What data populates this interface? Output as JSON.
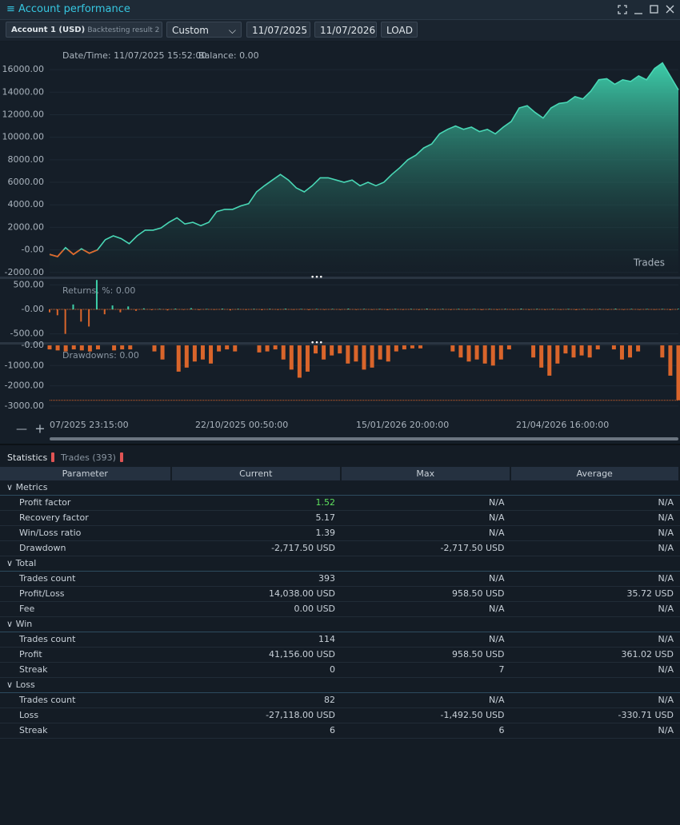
{
  "window": {
    "title": "Account performance"
  },
  "toolbar": {
    "account": "Account 1 (USD)",
    "source": "Backtesting result 2",
    "period": "Custom",
    "from": "11/07/2025",
    "to": "11/07/2026",
    "load": "LOAD"
  },
  "chart_data": [
    {
      "type": "area",
      "name": "equity",
      "header": "Date/Time: 11/07/2025 15:52:00",
      "balance": "Balance: 0.00",
      "label": "Trades",
      "color": "#49d7b5",
      "negative_color": "#e0662a",
      "values": [
        -400,
        -600,
        200,
        -400,
        100,
        -300,
        0,
        900,
        1250,
        1000,
        550,
        1250,
        1750,
        1750,
        1950,
        2450,
        2850,
        2300,
        2450,
        2150,
        2450,
        3400,
        3600,
        3600,
        3900,
        4100,
        5150,
        5700,
        6200,
        6700,
        6200,
        5500,
        5150,
        5700,
        6400,
        6400,
        6200,
        6000,
        6200,
        5700,
        6000,
        5700,
        6000,
        6700,
        7300,
        8000,
        8400,
        9050,
        9400,
        10300,
        10700,
        11000,
        10700,
        10900,
        10500,
        10700,
        10300,
        10900,
        11400,
        12600,
        12800,
        12200,
        11700,
        12600,
        13000,
        13100,
        13600,
        13400,
        14100,
        15100,
        15200,
        14700,
        15100,
        14950,
        15450,
        15100,
        16100,
        16600,
        15400,
        14200
      ],
      "ylim": [
        -2300,
        18350
      ],
      "yticks": [
        {
          "value": 16000,
          "label": "16000.00"
        },
        {
          "value": 14000,
          "label": "14000.00"
        },
        {
          "value": 12000,
          "label": "12000.00"
        },
        {
          "value": 10000,
          "label": "10000.00"
        },
        {
          "value": 8000,
          "label": "8000.00"
        },
        {
          "value": 6000,
          "label": "6000.00"
        },
        {
          "value": 4000,
          "label": "4000.00"
        },
        {
          "value": 2000,
          "label": "2000.00"
        },
        {
          "value": 0,
          "label": "-0.00"
        },
        {
          "value": -2000,
          "label": "-2000.00"
        }
      ]
    },
    {
      "type": "bar",
      "name": "returns",
      "header": "Returns, %: 0.00",
      "positive_color": "#3ecfa8",
      "negative_color": "#d9652b",
      "values": [
        -60,
        -120,
        -500,
        100,
        -250,
        -350,
        600,
        -100,
        80,
        -60,
        60,
        -30,
        20,
        -15,
        10,
        -20,
        15,
        -10,
        25,
        -15,
        10,
        -10,
        15,
        -20,
        10,
        -10,
        10,
        -15,
        10,
        -10,
        15,
        -10,
        10,
        -15,
        10,
        -10,
        10,
        -10,
        15,
        -10,
        10,
        -10,
        10,
        -15,
        10,
        -10,
        10,
        -10,
        15,
        -10,
        10,
        -10,
        10,
        -10,
        10,
        -15,
        10,
        -10,
        10,
        -10,
        15,
        -10,
        10,
        -10,
        10,
        -10,
        10,
        -15,
        10,
        -10,
        10,
        -10,
        15,
        -10,
        10,
        -10,
        10,
        -10,
        10,
        -15,
        10
      ],
      "ylim": [
        -620,
        620
      ],
      "yticks": [
        {
          "value": 500,
          "label": "500.00"
        },
        {
          "value": 0,
          "label": "-0.00"
        },
        {
          "value": -500,
          "label": "-500.00"
        }
      ]
    },
    {
      "type": "bar",
      "name": "drawdowns",
      "header": "Drawdowns: 0.00",
      "color": "#d9652b",
      "threshold": -2717.5,
      "values": [
        -200,
        -250,
        -300,
        -200,
        -250,
        -300,
        -200,
        0,
        -250,
        -200,
        -200,
        0,
        0,
        -300,
        -700,
        0,
        -1300,
        -1100,
        -800,
        -700,
        -900,
        -300,
        -200,
        -300,
        0,
        0,
        -350,
        -300,
        -200,
        -700,
        -1200,
        -1600,
        -1300,
        -400,
        -700,
        -500,
        -400,
        -900,
        -800,
        -1200,
        -1100,
        -700,
        -800,
        -300,
        -200,
        -150,
        -150,
        0,
        0,
        0,
        -300,
        -600,
        -800,
        -700,
        -900,
        -1000,
        -700,
        -200,
        0,
        0,
        -600,
        -1100,
        -1500,
        -900,
        -400,
        -600,
        -500,
        -600,
        -200,
        0,
        -200,
        -700,
        -600,
        -300,
        0,
        0,
        -600,
        -1500,
        -2717.5
      ],
      "ylim": [
        -3480,
        40
      ],
      "yticks": [
        {
          "value": 0,
          "label": "-0.00"
        },
        {
          "value": -1000,
          "label": "-1000.00"
        },
        {
          "value": -2000,
          "label": "-2000.00"
        },
        {
          "value": -3000,
          "label": "-3000.00"
        }
      ]
    }
  ],
  "time_labels": [
    "07/2025 23:15:00",
    "22/10/2025 00:50:00",
    "15/01/2026 20:00:00",
    "21/04/2026 16:00:00"
  ],
  "tabs": [
    "Statistics",
    "Trades (393)"
  ],
  "table": {
    "columns": [
      "Parameter",
      "Current",
      "Max",
      "Average"
    ],
    "groups": [
      {
        "name": "Metrics",
        "rows": [
          [
            "Profit factor",
            "1.52",
            "N/A",
            "N/A"
          ],
          [
            "Recovery factor",
            "5.17",
            "N/A",
            "N/A"
          ],
          [
            "Win/Loss ratio",
            "1.39",
            "N/A",
            "N/A"
          ],
          [
            "Drawdown",
            "-2,717.50 USD",
            "-2,717.50 USD",
            "N/A"
          ]
        ]
      },
      {
        "name": "Total",
        "rows": [
          [
            "Trades count",
            "393",
            "N/A",
            "N/A"
          ],
          [
            "Profit/Loss",
            "14,038.00 USD",
            "958.50 USD",
            "35.72 USD"
          ],
          [
            "Fee",
            "0.00 USD",
            "N/A",
            "N/A"
          ]
        ]
      },
      {
        "name": "Win",
        "rows": [
          [
            "Trades count",
            "114",
            "N/A",
            "N/A"
          ],
          [
            "Profit",
            "41,156.00 USD",
            "958.50 USD",
            "361.02 USD"
          ],
          [
            "Streak",
            "0",
            "7",
            "N/A"
          ]
        ]
      },
      {
        "name": "Loss",
        "rows": [
          [
            "Trades count",
            "82",
            "N/A",
            "N/A"
          ],
          [
            "Loss",
            "-27,118.00 USD",
            "-1,492.50 USD",
            "-330.71 USD"
          ],
          [
            "Streak",
            "6",
            "6",
            "N/A"
          ]
        ]
      }
    ]
  }
}
